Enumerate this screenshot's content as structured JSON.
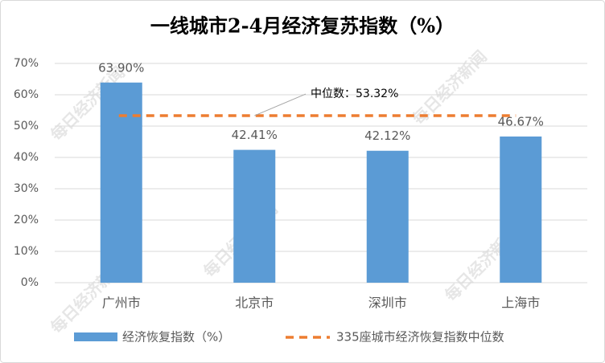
{
  "chart_data": {
    "type": "bar",
    "title": "一线城市2-4月经济复苏指数（%）",
    "categories": [
      "广州市",
      "北京市",
      "深圳市",
      "上海市"
    ],
    "series": [
      {
        "name": "经济恢复指数（%）",
        "color": "#5b9bd5",
        "values": [
          63.9,
          42.41,
          42.12,
          46.67
        ],
        "value_labels": [
          "63.90%",
          "42.41%",
          "42.12%",
          "46.67%"
        ]
      }
    ],
    "reference_line": {
      "name": "335座城市经济恢复指数中位数",
      "value": 53.32,
      "label": "中位数：53.32%",
      "color": "#ed7d31"
    },
    "ylim": [
      0,
      70
    ],
    "yticks": [
      {
        "value": 0,
        "label": "0%"
      },
      {
        "value": 10,
        "label": "10%"
      },
      {
        "value": 20,
        "label": "20%"
      },
      {
        "value": 30,
        "label": "30%"
      },
      {
        "value": 40,
        "label": "40%"
      },
      {
        "value": 50,
        "label": "50%"
      },
      {
        "value": 60,
        "label": "60%"
      },
      {
        "value": 70,
        "label": "70%"
      }
    ],
    "grid": true,
    "watermark": "每日经济新闻"
  }
}
